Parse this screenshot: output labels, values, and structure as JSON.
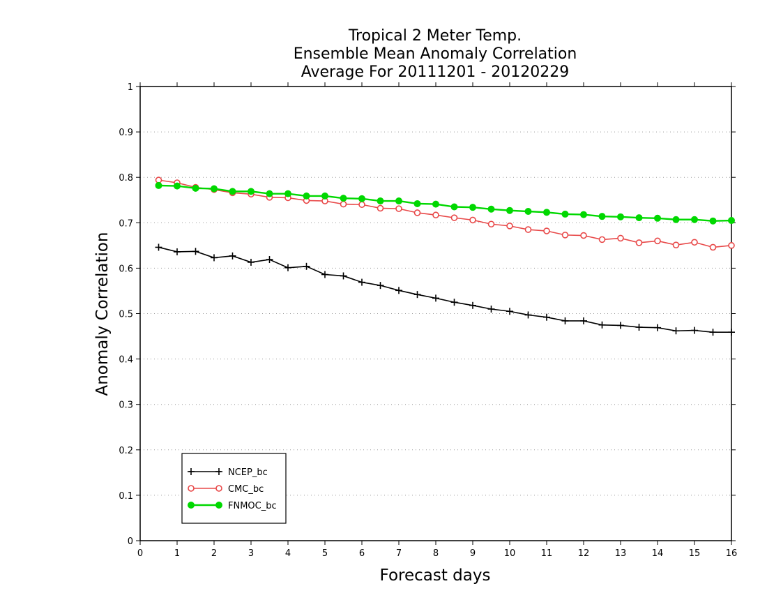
{
  "chart_data": {
    "type": "line",
    "title": [
      "Tropical 2 Meter Temp.",
      "Ensemble Mean Anomaly Correlation",
      "Average For 20111201 - 20120229"
    ],
    "xlabel": "Forecast days",
    "ylabel": "Anomaly Correlation",
    "xlim": [
      0,
      16
    ],
    "ylim": [
      0,
      1
    ],
    "x_ticks": [
      "0",
      "1",
      "2",
      "3",
      "4",
      "5",
      "6",
      "7",
      "8",
      "9",
      "10",
      "11",
      "12",
      "13",
      "14",
      "15",
      "16"
    ],
    "y_ticks": [
      "0",
      "0.1",
      "0.2",
      "0.3",
      "0.4",
      "0.5",
      "0.6",
      "0.7",
      "0.8",
      "0.9",
      "1"
    ],
    "grid": true,
    "legend_position": "bottom-left",
    "x": [
      0.5,
      1,
      1.5,
      2,
      2.5,
      3,
      3.5,
      4,
      4.5,
      5,
      5.5,
      6,
      6.5,
      7,
      7.5,
      8,
      8.5,
      9,
      9.5,
      10,
      10.5,
      11,
      11.5,
      12,
      12.5,
      13,
      13.5,
      14,
      14.5,
      15,
      15.5,
      16
    ],
    "series": [
      {
        "name": "NCEP_bc",
        "color": "#000000",
        "marker": "plus",
        "values": [
          0.646,
          0.636,
          0.637,
          0.623,
          0.627,
          0.613,
          0.619,
          0.601,
          0.604,
          0.586,
          0.583,
          0.569,
          0.562,
          0.551,
          0.542,
          0.534,
          0.525,
          0.518,
          0.51,
          0.505,
          0.497,
          0.492,
          0.484,
          0.484,
          0.475,
          0.474,
          0.47,
          0.469,
          0.462,
          0.463,
          0.459,
          0.459
        ]
      },
      {
        "name": "CMC_bc",
        "color": "#e84848",
        "marker": "open-circle",
        "values": [
          0.794,
          0.788,
          0.778,
          0.773,
          0.766,
          0.763,
          0.756,
          0.755,
          0.749,
          0.748,
          0.741,
          0.74,
          0.732,
          0.731,
          0.722,
          0.717,
          0.711,
          0.706,
          0.697,
          0.693,
          0.685,
          0.682,
          0.673,
          0.672,
          0.663,
          0.666,
          0.656,
          0.66,
          0.651,
          0.657,
          0.646,
          0.65
        ]
      },
      {
        "name": "FNMOC_bc",
        "color": "#00d800",
        "marker": "filled-circle",
        "values": [
          0.782,
          0.781,
          0.776,
          0.775,
          0.769,
          0.769,
          0.764,
          0.764,
          0.759,
          0.759,
          0.754,
          0.753,
          0.748,
          0.748,
          0.742,
          0.741,
          0.735,
          0.734,
          0.73,
          0.727,
          0.725,
          0.723,
          0.719,
          0.718,
          0.714,
          0.713,
          0.711,
          0.71,
          0.707,
          0.707,
          0.704,
          0.705
        ]
      }
    ]
  }
}
